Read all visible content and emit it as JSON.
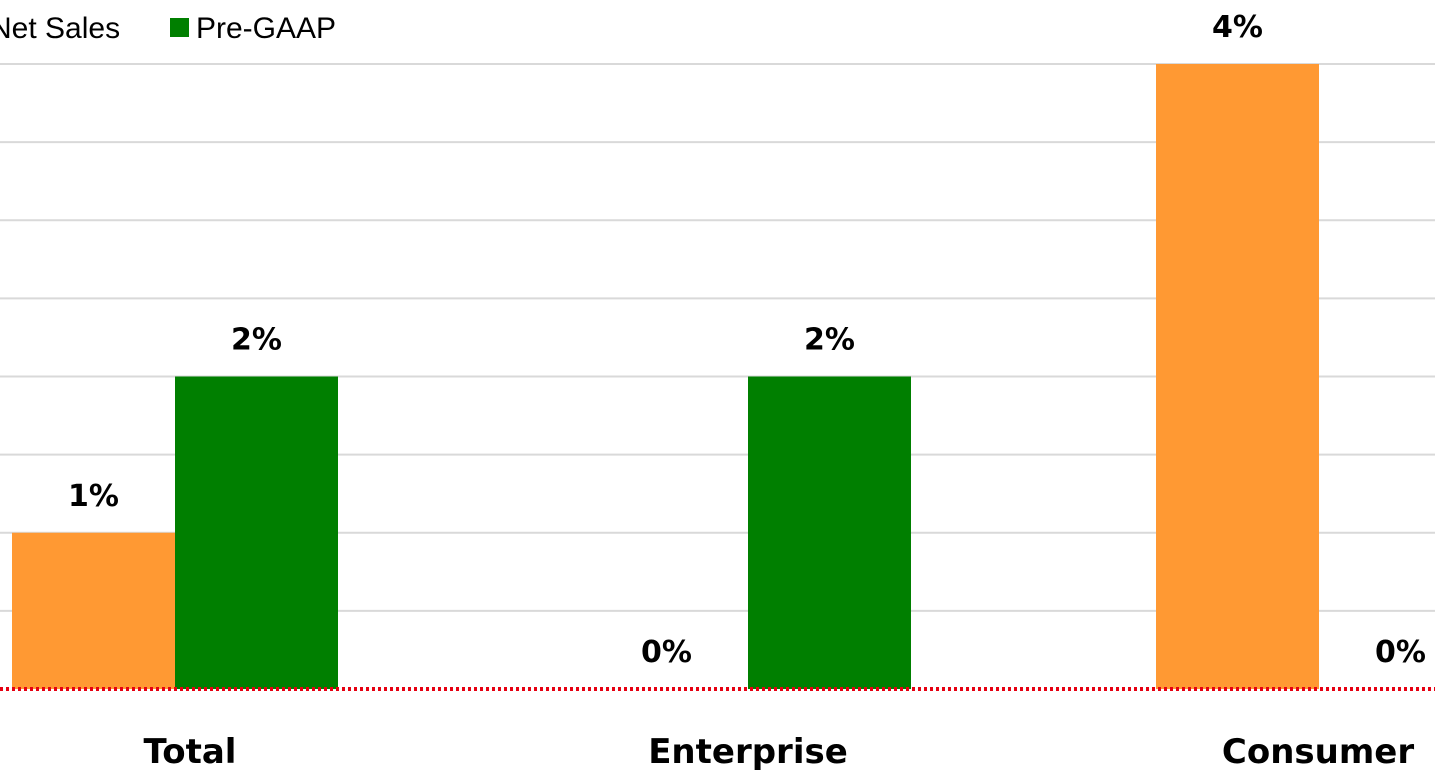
{
  "colors": {
    "orange": "#FF9933",
    "green": "#007F00",
    "baseline": "#E60012",
    "grid": "#D9D9D9"
  },
  "legend": {
    "items": [
      {
        "label": "Net Sales",
        "color": "#FF9933"
      },
      {
        "label": "Pre-GAAP",
        "color": "#007F00"
      }
    ]
  },
  "chart_data": {
    "type": "bar",
    "categories": [
      "Total",
      "Enterprise",
      "Consumer"
    ],
    "series": [
      {
        "name": "Net Sales",
        "values": [
          1,
          0,
          4
        ],
        "labels": [
          "1%",
          "0%",
          "4%"
        ],
        "color": "#FF9933"
      },
      {
        "name": "Pre-GAAP",
        "values": [
          2,
          2,
          0
        ],
        "labels": [
          "2%",
          "2%",
          "0%"
        ],
        "color": "#007F00"
      }
    ],
    "ylim": [
      0,
      4
    ],
    "grid": true,
    "legend_position": "top-left",
    "baseline_style": "red-dotted"
  }
}
